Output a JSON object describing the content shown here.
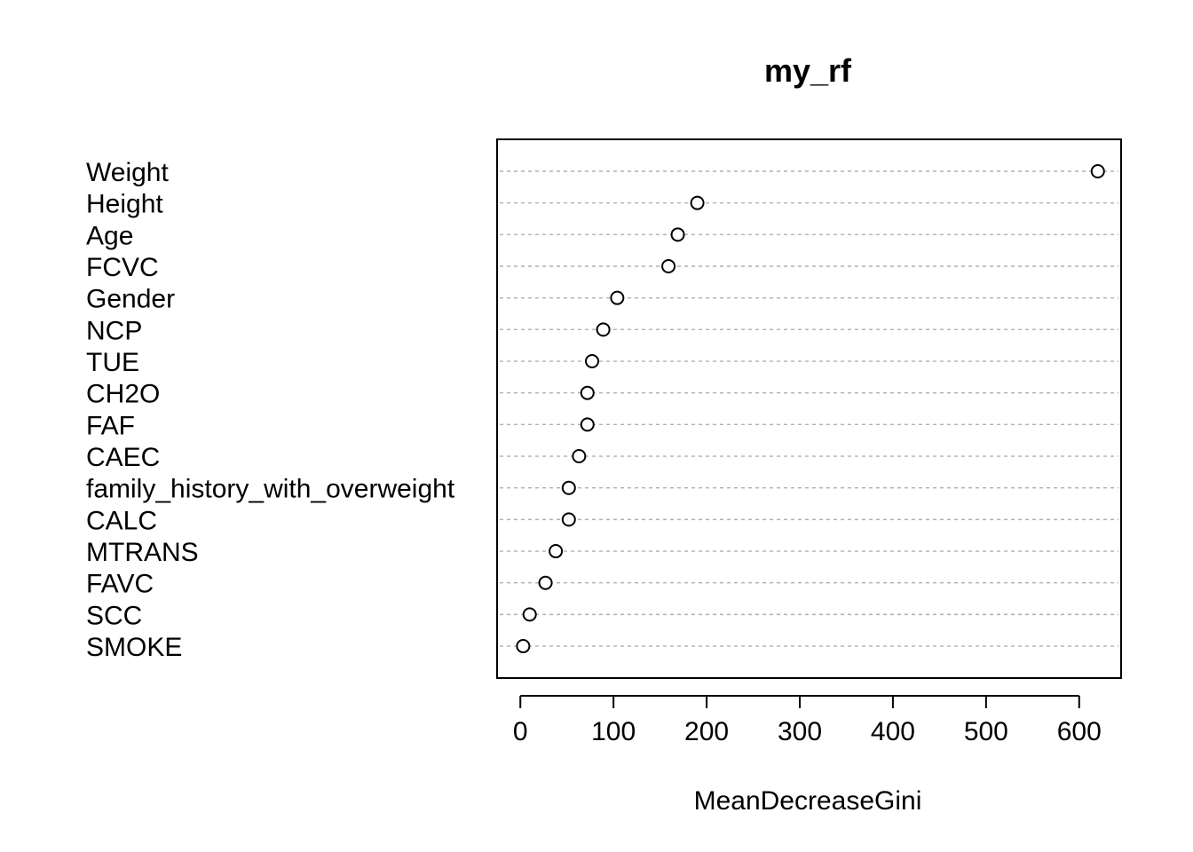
{
  "chart_data": {
    "type": "scatter",
    "title": "my_rf",
    "xlabel": "MeanDecreaseGini",
    "ylabel": "",
    "xlim": [
      -25,
      645
    ],
    "xticks": [
      0,
      100,
      200,
      300,
      400,
      500,
      600
    ],
    "xtick_labels": [
      "0",
      "100",
      "200",
      "300",
      "400",
      "500",
      "600"
    ],
    "grid": "horizontal dashed",
    "legend": "none",
    "categories": [
      "Weight",
      "Height",
      "Age",
      "FCVC",
      "Gender",
      "NCP",
      "TUE",
      "CH2O",
      "FAF",
      "CAEC",
      "family_history_with_overweight",
      "CALC",
      "MTRANS",
      "FAVC",
      "SCC",
      "SMOKE"
    ],
    "values": [
      620,
      190,
      169,
      159,
      104,
      89,
      77,
      72,
      72,
      63,
      52,
      52,
      38,
      27,
      10,
      3
    ]
  }
}
